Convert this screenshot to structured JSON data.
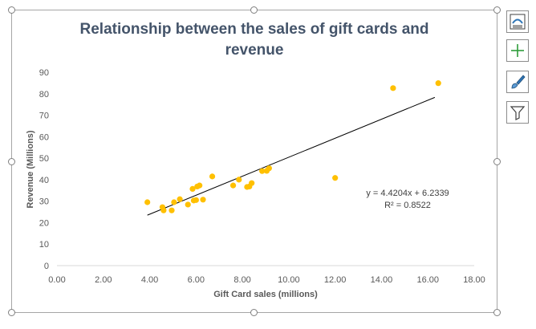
{
  "chart_data": {
    "type": "scatter",
    "title_lines": [
      "Relationship between the sales of gift cards and",
      "revenue"
    ],
    "xlabel": "Gift Card sales (millions)",
    "ylabel": "Revenue (Millions)",
    "xlim": [
      0,
      18
    ],
    "ylim": [
      0,
      90
    ],
    "x_ticks": [
      0,
      2,
      4,
      6,
      8,
      10,
      12,
      14,
      16,
      18
    ],
    "x_tick_labels": [
      "0.00",
      "2.00",
      "4.00",
      "6.00",
      "8.00",
      "10.00",
      "12.00",
      "14.00",
      "16.00",
      "18.00"
    ],
    "y_ticks": [
      0,
      10,
      20,
      30,
      40,
      50,
      60,
      70,
      80,
      90
    ],
    "y_tick_labels": [
      "0",
      "10",
      "20",
      "30",
      "40",
      "50",
      "60",
      "70",
      "80",
      "90"
    ],
    "grid": false,
    "legend": "none",
    "point_color": "#ffc000",
    "trendline_color": "#000000",
    "trendline": {
      "slope": 4.4204,
      "intercept": 6.2339,
      "x_start": 3.9,
      "x_end": 16.3
    },
    "trendline_equation": "y = 4.4204x + 6.2339",
    "r_squared_label": "R² = 0.8522",
    "series": [
      {
        "name": "Revenue",
        "points": [
          [
            3.9,
            29.5
          ],
          [
            4.55,
            27.2
          ],
          [
            4.6,
            25.7
          ],
          [
            4.95,
            25.7
          ],
          [
            5.05,
            29.5
          ],
          [
            5.3,
            30.9
          ],
          [
            5.65,
            28.4
          ],
          [
            5.85,
            35.7
          ],
          [
            5.9,
            30.3
          ],
          [
            6.0,
            30.5
          ],
          [
            6.05,
            36.8
          ],
          [
            6.15,
            37.3
          ],
          [
            6.3,
            30.7
          ],
          [
            6.7,
            41.5
          ],
          [
            7.6,
            37.3
          ],
          [
            7.85,
            40.0
          ],
          [
            8.2,
            36.6
          ],
          [
            8.3,
            36.8
          ],
          [
            8.4,
            38.4
          ],
          [
            8.85,
            44.0
          ],
          [
            9.05,
            44.1
          ],
          [
            9.15,
            45.3
          ],
          [
            12.0,
            40.8
          ],
          [
            14.5,
            82.6
          ],
          [
            16.45,
            84.9
          ]
        ]
      }
    ]
  },
  "side_buttons": [
    {
      "name": "chart-elements-button",
      "icon": "chart-elements-icon"
    },
    {
      "name": "add-element-button",
      "icon": "plus-icon"
    },
    {
      "name": "chart-styles-button",
      "icon": "paintbrush-icon"
    },
    {
      "name": "chart-filters-button",
      "icon": "funnel-icon"
    }
  ]
}
